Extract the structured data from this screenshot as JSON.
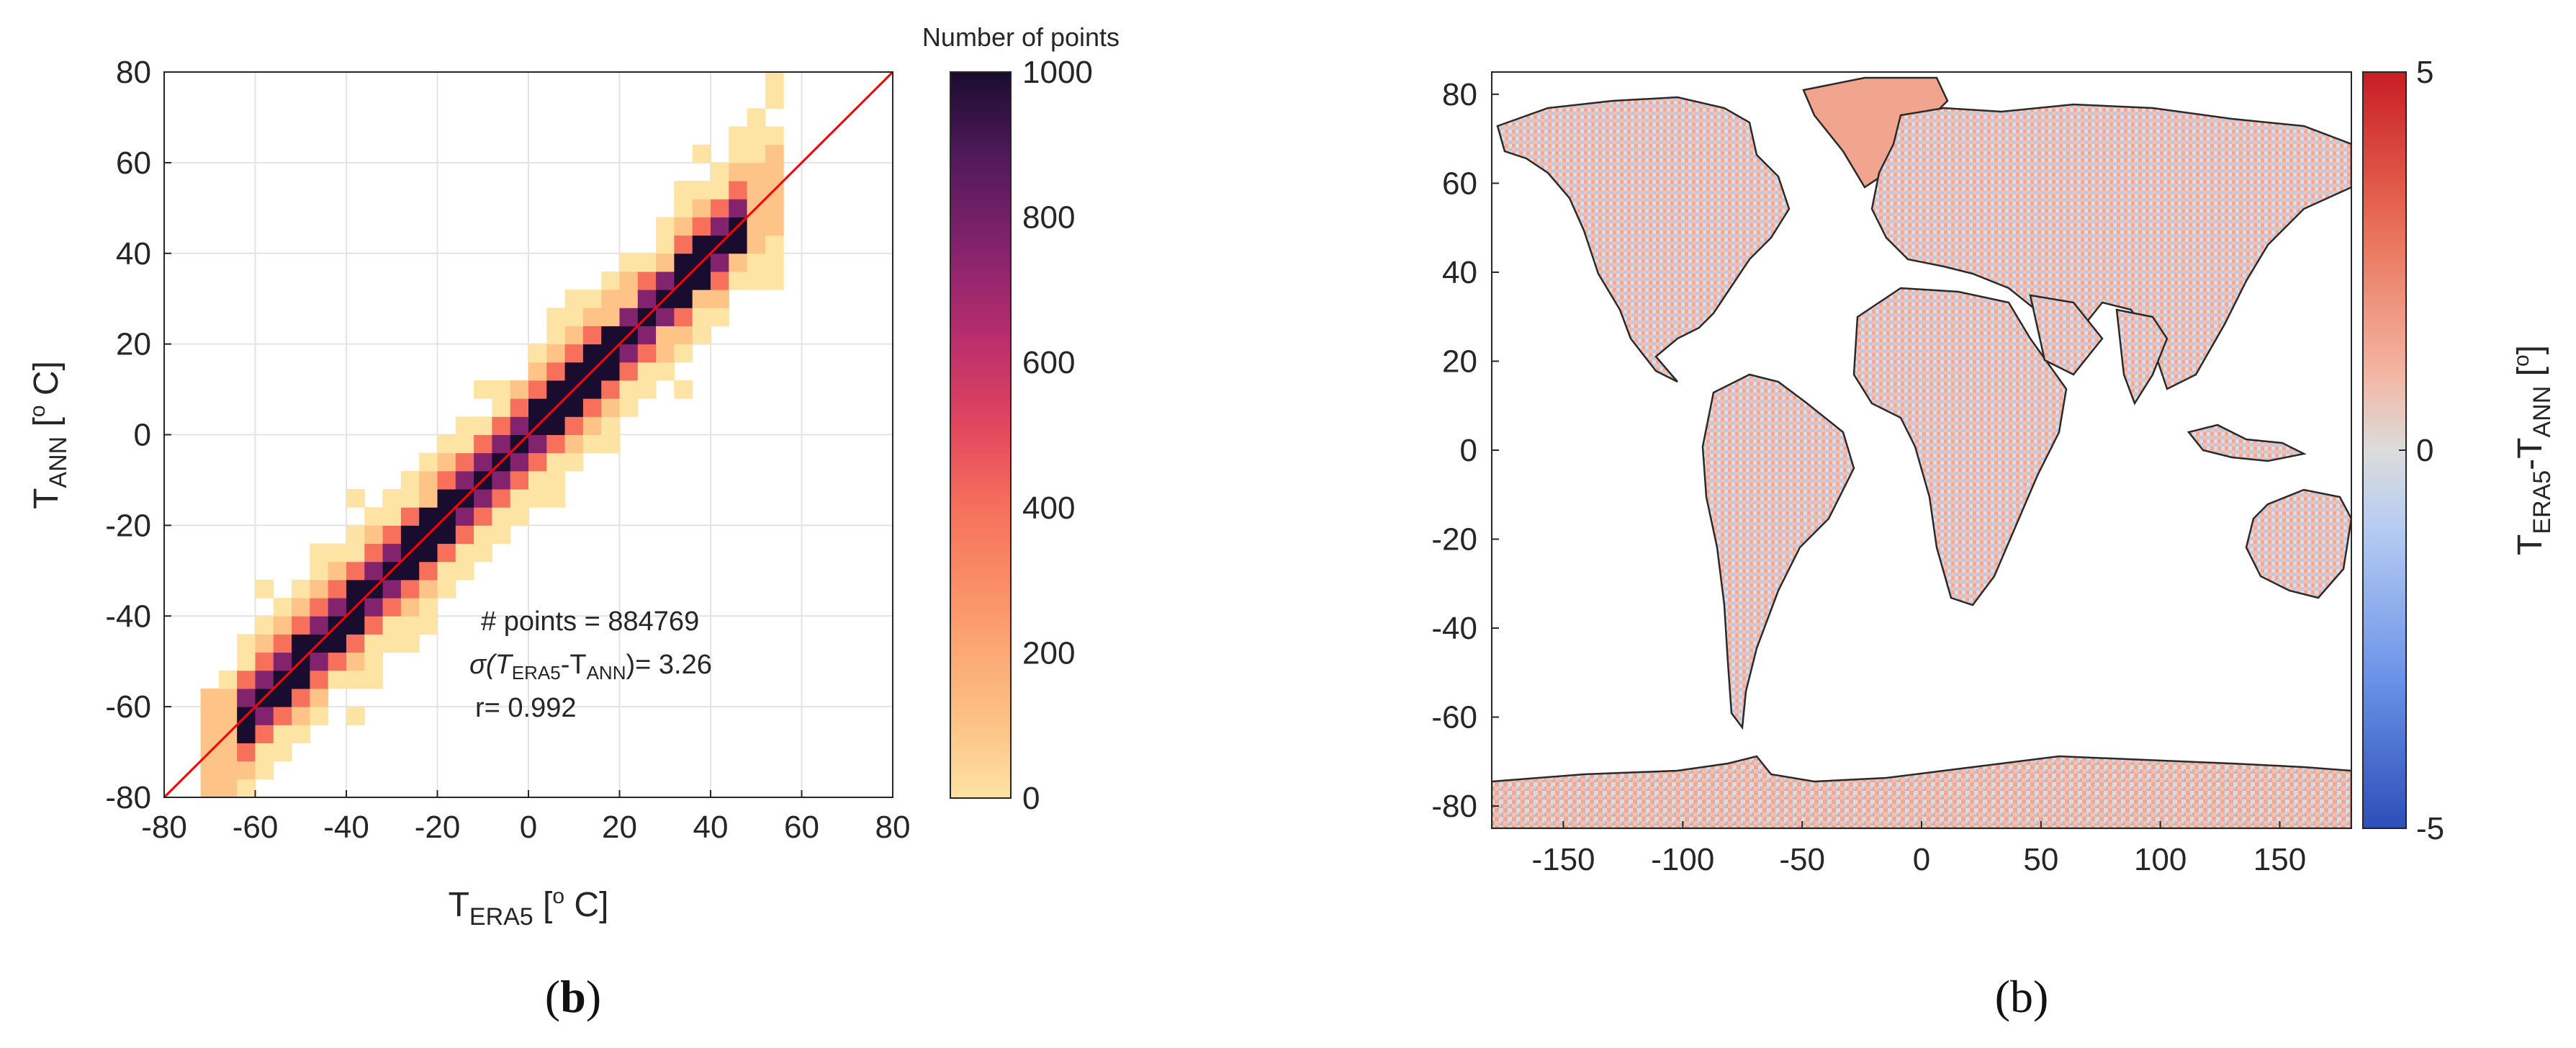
{
  "figure": {
    "panels": [
      {
        "label": "(b)",
        "bold_letter": "b"
      },
      {
        "label": "(b)",
        "bold_letter": ""
      }
    ]
  },
  "chart_data": [
    {
      "type": "heatmap",
      "subtype": "2d-histogram",
      "title": "",
      "xlabel": {
        "base": "T",
        "sub": "ERA5",
        "unit": " [",
        "sup": "o",
        "unit_end": " C]"
      },
      "ylabel": {
        "base": "T",
        "sub": "ANN",
        "unit": " [",
        "sup": "o",
        "unit_end": " C]"
      },
      "xlim": [
        -80,
        80
      ],
      "ylim": [
        -80,
        80
      ],
      "xticks": [
        "-80",
        "-60",
        "-40",
        "-20",
        "0",
        "20",
        "40",
        "60",
        "80"
      ],
      "yticks": [
        "-80",
        "-60",
        "-40",
        "-20",
        "0",
        "20",
        "40",
        "60",
        "80"
      ],
      "grid": true,
      "bin_width": 4,
      "colorbar": {
        "title": "Number of points",
        "range": [
          0,
          1000
        ],
        "ticks": [
          "0",
          "200",
          "400",
          "600",
          "800",
          "1000"
        ],
        "colormap": [
          "#fde3a4",
          "#fdc387",
          "#fb9a6c",
          "#f6705b",
          "#e0445f",
          "#b62d6d",
          "#83226d",
          "#521a5a",
          "#2c113f",
          "#1a0c2f"
        ]
      },
      "reference_line": {
        "x": [
          -80,
          80
        ],
        "y": [
          -80,
          80
        ],
        "color": "#ff0000"
      },
      "density_bands": [
        {
          "min_count": 1000,
          "half_width_deg": 4
        },
        {
          "min_count": 700,
          "half_width_deg": 6
        },
        {
          "min_count": 350,
          "half_width_deg": 9
        },
        {
          "min_count": 120,
          "half_width_deg": 12
        },
        {
          "min_count": 30,
          "half_width_deg": 17
        }
      ],
      "x_extent": [
        -72,
        56
      ],
      "annotations": {
        "points": "# points = 884769",
        "sigma": {
          "prefix": "σ(T",
          "sub1": "ERA5",
          "mid": "-T",
          "sub2": "ANN",
          "suffix": ")= 3.26"
        },
        "r": "r= 0.992"
      }
    },
    {
      "type": "heatmap",
      "subtype": "map",
      "title": "",
      "xlabel": "",
      "ylabel": "",
      "xlim": [
        -180,
        180
      ],
      "ylim": [
        -85,
        85
      ],
      "xticks": [
        "-150",
        "-100",
        "-50",
        "0",
        "50",
        "100",
        "150"
      ],
      "yticks": [
        "80",
        "60",
        "40",
        "20",
        "0",
        "-20",
        "-40",
        "-60",
        "-80"
      ],
      "grid": false,
      "colorbar": {
        "label": {
          "base": "T",
          "sub1": "ERA5",
          "mid": "-T",
          "sub2": "ANN",
          "unit": " [",
          "sup": "o",
          "unit_end": "]"
        },
        "range": [
          -5,
          5
        ],
        "ticks": [
          "5",
          "0",
          "-5"
        ],
        "colormap": [
          "#2c4fb8",
          "#6b93e8",
          "#b7cdf2",
          "#dcdcdc",
          "#f4b6a3",
          "#e86d55",
          "#c81d25"
        ]
      }
    }
  ]
}
